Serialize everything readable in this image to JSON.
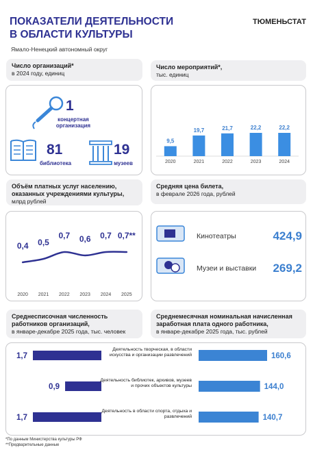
{
  "header": {
    "title": [
      "ПОКАЗАТЕЛИ ДЕЯТЕЛЬНОСТИ",
      "В ОБЛАСТИ КУЛЬТУРЫ"
    ],
    "agency": "ТЮМЕНЬСТАТ",
    "region": "Ямало-Ненецкий  автономный округ"
  },
  "organizations": {
    "title": "Число организаций*",
    "subtitle": "в 2024 году, единиц",
    "items": [
      {
        "value": "1",
        "label": "концертная организация"
      },
      {
        "value": "81",
        "label": "библиотека"
      },
      {
        "value": "19",
        "label": "музеев"
      }
    ]
  },
  "ticket_prices": {
    "title": "Средняя цена билета,",
    "subtitle": "в феврале 2026 года, рублей",
    "items": [
      {
        "label": "Кинотеатры",
        "value": "424,9"
      },
      {
        "label": "Музеи и выставки",
        "value": "269,2"
      }
    ]
  },
  "chart_data": [
    {
      "type": "bar",
      "title": "Число мероприятий*,",
      "subtitle": "тыс. единиц",
      "categories": [
        "2020",
        "2021",
        "2022",
        "2023",
        "2024"
      ],
      "values": [
        9.5,
        19.7,
        21.7,
        22.2,
        22.2
      ],
      "value_labels": [
        "9,5",
        "19,7",
        "21,7",
        "22,2",
        "22,2"
      ],
      "color": "#3b8ee2"
    },
    {
      "type": "line",
      "title": "Объём платных услуг населению, оказанных учреждениями культуры,",
      "subtitle": "млрд рублей",
      "categories": [
        "2020",
        "2021",
        "2022",
        "2023",
        "2024",
        "2025"
      ],
      "values": [
        0.4,
        0.5,
        0.7,
        0.6,
        0.7,
        0.7
      ],
      "value_labels": [
        "0,4",
        "0,5",
        "0,7",
        "0,6",
        "0,7",
        "0,7**"
      ],
      "color": "#2e3192"
    },
    {
      "type": "hbar",
      "direction": "left",
      "title": "Среднесписочная численность работников организаций,",
      "subtitle": "в январе-декабре  2025 года, тыс.  человек",
      "categories": [
        "Деятельность творческая, в области искусства и организации развлечений",
        "Деятельность библиотек, архивов, музеев и прочих объектов культуры",
        "Деятельность в области спорта, отдыха и развлечений"
      ],
      "values": [
        1.7,
        0.9,
        1.7
      ],
      "value_labels": [
        "1,7",
        "0,9",
        "1,7"
      ],
      "color": "#2e3192"
    },
    {
      "type": "hbar",
      "direction": "right",
      "title": "Среднемесячная номинальная начисленная заработная плата одного работника,",
      "subtitle": "в январе-декабре  2025 года, тыс.  рублей",
      "values": [
        160.6,
        144.0,
        140.7
      ],
      "value_labels": [
        "160,6",
        "144,0",
        "140,7"
      ],
      "color": "#3b84d4"
    }
  ],
  "footnotes": [
    "*По данным Министерства культуры РФ",
    "**Предварительные данные"
  ]
}
